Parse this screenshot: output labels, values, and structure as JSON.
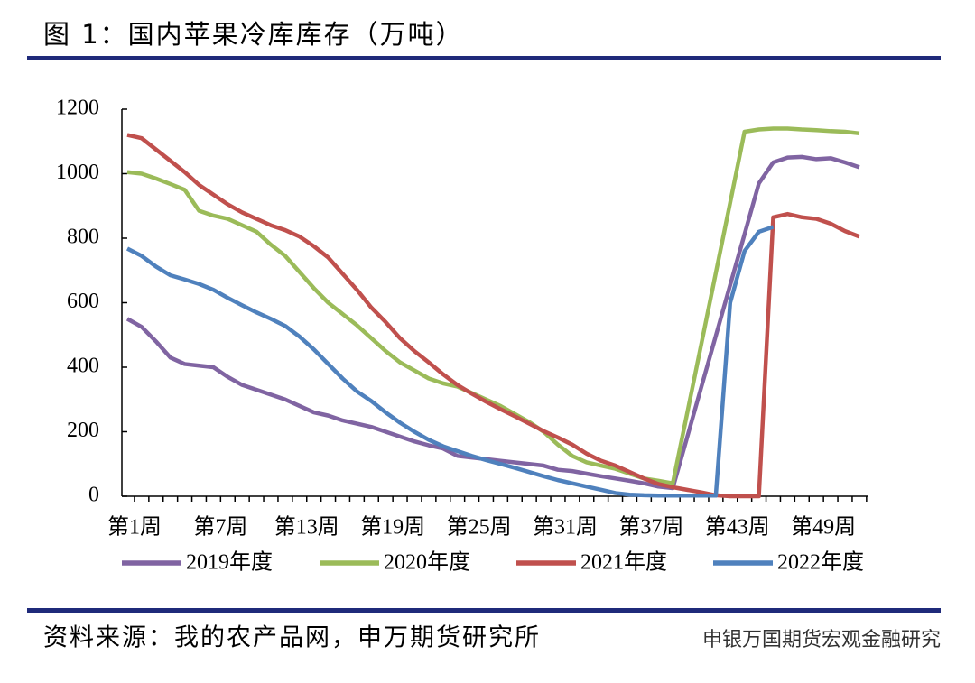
{
  "chart_data": {
    "type": "line",
    "title": "图 1：国内苹果冷库库存（万吨）",
    "source": "资料来源：我的农产品网，申万期货研究所",
    "watermark": "申银万国期货宏观金融研究",
    "categories": [
      "第1周",
      null,
      null,
      null,
      null,
      null,
      "第7周",
      null,
      null,
      null,
      null,
      null,
      "第13周",
      null,
      null,
      null,
      null,
      null,
      "第19周",
      null,
      null,
      null,
      null,
      null,
      "第25周",
      null,
      null,
      null,
      null,
      null,
      "第31周",
      null,
      null,
      null,
      null,
      null,
      "第37周",
      null,
      null,
      null,
      null,
      null,
      "第43周",
      null,
      null,
      null,
      null,
      null,
      "第49周",
      null,
      null,
      null
    ],
    "ylim": [
      0,
      1200
    ],
    "yticks": [
      0,
      200,
      400,
      600,
      800,
      1000,
      1200
    ],
    "series": [
      {
        "name": "2019年度",
        "color": "#8064a2",
        "values": [
          550,
          525,
          480,
          430,
          410,
          405,
          400,
          370,
          345,
          330,
          315,
          300,
          280,
          260,
          250,
          235,
          225,
          215,
          200,
          185,
          170,
          158,
          148,
          125,
          120,
          115,
          110,
          105,
          100,
          95,
          82,
          78,
          70,
          62,
          55,
          48,
          40,
          30,
          25,
          182,
          340,
          497,
          655,
          812,
          970,
          1035,
          1050,
          1052,
          1045,
          1048,
          1035,
          1020
        ]
      },
      {
        "name": "2020年度",
        "color": "#9bbb59",
        "values": [
          1005,
          1000,
          985,
          968,
          950,
          885,
          870,
          860,
          840,
          820,
          780,
          745,
          695,
          645,
          600,
          565,
          530,
          490,
          450,
          415,
          390,
          365,
          350,
          340,
          320,
          300,
          280,
          255,
          230,
          200,
          160,
          125,
          105,
          95,
          85,
          70,
          55,
          48,
          40,
          256,
          474,
          692,
          910,
          1130,
          1137,
          1140,
          1140,
          1137,
          1135,
          1132,
          1130,
          1125
        ]
      },
      {
        "name": "2021年度",
        "color": "#c0504d",
        "values": [
          1120,
          1110,
          1075,
          1040,
          1005,
          965,
          935,
          905,
          880,
          860,
          840,
          825,
          805,
          775,
          740,
          690,
          640,
          585,
          540,
          490,
          450,
          415,
          378,
          345,
          318,
          293,
          270,
          248,
          225,
          202,
          182,
          160,
          132,
          110,
          95,
          75,
          55,
          38,
          28,
          20,
          12,
          3,
          0,
          0,
          0,
          865,
          875,
          865,
          860,
          845,
          822,
          805
        ]
      },
      {
        "name": "2022年度",
        "color": "#4f81bd",
        "values": [
          768,
          745,
          712,
          685,
          672,
          658,
          640,
          615,
          592,
          570,
          550,
          528,
          495,
          455,
          410,
          365,
          325,
          295,
          260,
          228,
          200,
          175,
          155,
          140,
          125,
          112,
          100,
          88,
          75,
          62,
          50,
          40,
          30,
          20,
          10,
          5,
          3,
          2,
          2,
          2,
          2,
          2,
          600,
          760,
          820,
          835,
          null,
          null,
          null,
          null,
          null,
          null
        ]
      }
    ]
  }
}
